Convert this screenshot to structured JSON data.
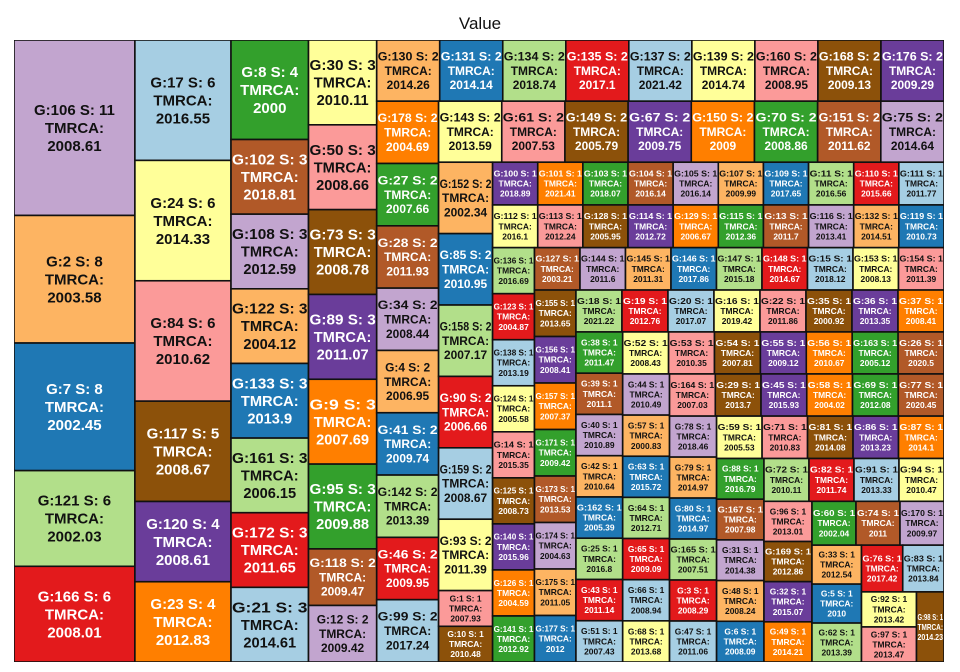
{
  "chart_data": {
    "type": "treemap",
    "title": "Value",
    "label_format": "G:{g} S: {s} TMRCA: {t}",
    "palette": [
      "#c2a5cf",
      "#fdb462",
      "#1f78b4",
      "#b2df8a",
      "#e31a1c",
      "#a6cee3",
      "#ffff99",
      "#fb9a99",
      "#8c510a",
      "#6a3d9a",
      "#ff7f00",
      "#33a02c",
      "#b15928"
    ],
    "groups": [
      {
        "g": 106,
        "s": 11,
        "t": "2008.61"
      },
      {
        "g": 2,
        "s": 8,
        "t": "2003.58"
      },
      {
        "g": 7,
        "s": 8,
        "t": "2002.45"
      },
      {
        "g": 121,
        "s": 6,
        "t": "2002.03"
      },
      {
        "g": 166,
        "s": 6,
        "t": "2008.01"
      },
      {
        "g": 17,
        "s": 6,
        "t": "2016.55"
      },
      {
        "g": 24,
        "s": 6,
        "t": "2014.33"
      },
      {
        "g": 84,
        "s": 6,
        "t": "2010.62"
      },
      {
        "g": 117,
        "s": 5,
        "t": "2008.67"
      },
      {
        "g": 120,
        "s": 4,
        "t": "2008.61"
      },
      {
        "g": 23,
        "s": 4,
        "t": "2012.83"
      },
      {
        "g": 8,
        "s": 4,
        "t": "2000"
      },
      {
        "g": 102,
        "s": 3,
        "t": "2018.81"
      },
      {
        "g": 108,
        "s": 3,
        "t": "2012.59"
      },
      {
        "g": 122,
        "s": 3,
        "t": "2004.12"
      },
      {
        "g": 133,
        "s": 3,
        "t": "2013.9"
      },
      {
        "g": 161,
        "s": 3,
        "t": "2006.15"
      },
      {
        "g": 172,
        "s": 3,
        "t": "2011.65"
      },
      {
        "g": 21,
        "s": 3,
        "t": "2014.61"
      },
      {
        "g": 30,
        "s": 3,
        "t": "2010.11"
      },
      {
        "g": 50,
        "s": 3,
        "t": "2008.66"
      },
      {
        "g": 73,
        "s": 3,
        "t": "2008.78"
      },
      {
        "g": 89,
        "s": 3,
        "t": "2011.07"
      },
      {
        "g": 9,
        "s": 3,
        "t": "2007.69"
      },
      {
        "g": 95,
        "s": 3,
        "t": "2009.88"
      },
      {
        "g": 118,
        "s": 2,
        "t": "2009.47"
      },
      {
        "g": 12,
        "s": 2,
        "t": "2009.42"
      },
      {
        "g": 130,
        "s": 2,
        "t": "2014.26"
      },
      {
        "g": 131,
        "s": 2,
        "t": "2014.14"
      },
      {
        "g": 134,
        "s": 2,
        "t": "2018.74"
      },
      {
        "g": 135,
        "s": 2,
        "t": "2017.1"
      },
      {
        "g": 137,
        "s": 2,
        "t": "2021.42"
      },
      {
        "g": 139,
        "s": 2,
        "t": "2014.74"
      },
      {
        "g": 160,
        "s": 2,
        "t": "2008.95"
      },
      {
        "g": 168,
        "s": 2,
        "t": "2009.13"
      },
      {
        "g": 176,
        "s": 2,
        "t": "2009.29"
      },
      {
        "g": 178,
        "s": 2,
        "t": "2004.69"
      },
      {
        "g": 27,
        "s": 2,
        "t": "2007.66"
      },
      {
        "g": 28,
        "s": 2,
        "t": "2011.93"
      },
      {
        "g": 34,
        "s": 2,
        "t": "2008.44"
      },
      {
        "g": 4,
        "s": 2,
        "t": "2006.95"
      },
      {
        "g": 41,
        "s": 2,
        "t": "2009.74"
      },
      {
        "g": 142,
        "s": 2,
        "t": "2013.39"
      },
      {
        "g": 46,
        "s": 2,
        "t": "2009.95"
      },
      {
        "g": 99,
        "s": 2,
        "t": "2017.24"
      },
      {
        "g": 143,
        "s": 2,
        "t": "2013.59"
      },
      {
        "g": 61,
        "s": 2,
        "t": "2007.53"
      },
      {
        "g": 149,
        "s": 2,
        "t": "2005.79"
      },
      {
        "g": 67,
        "s": 2,
        "t": "2009.75"
      },
      {
        "g": 150,
        "s": 2,
        "t": "2009"
      },
      {
        "g": 70,
        "s": 2,
        "t": "2008.86"
      },
      {
        "g": 151,
        "s": 2,
        "t": "2011.62"
      },
      {
        "g": 75,
        "s": 2,
        "t": "2014.64"
      },
      {
        "g": 152,
        "s": 2,
        "t": "2002.34"
      },
      {
        "g": 85,
        "s": 2,
        "t": "2010.95"
      },
      {
        "g": 158,
        "s": 2,
        "t": "2007.17"
      },
      {
        "g": 90,
        "s": 2,
        "t": "2006.66"
      },
      {
        "g": 159,
        "s": 2,
        "t": "2008.67"
      },
      {
        "g": 93,
        "s": 2,
        "t": "2011.39"
      },
      {
        "g": 1,
        "s": 1,
        "t": "2007.93"
      },
      {
        "g": 10,
        "s": 1,
        "t": "2010.48"
      },
      {
        "g": 100,
        "s": 1,
        "t": "2018.89"
      },
      {
        "g": 101,
        "s": 1,
        "t": "2021.41"
      },
      {
        "g": 103,
        "s": 1,
        "t": "2018.07"
      },
      {
        "g": 104,
        "s": 1,
        "t": "2016.14"
      },
      {
        "g": 105,
        "s": 1,
        "t": "2016.14"
      },
      {
        "g": 107,
        "s": 1,
        "t": "2009.99"
      },
      {
        "g": 109,
        "s": 1,
        "t": "2017.65"
      },
      {
        "g": 11,
        "s": 1,
        "t": "2016.56"
      },
      {
        "g": 110,
        "s": 1,
        "t": "2015.66"
      },
      {
        "g": 111,
        "s": 1,
        "t": "2011.77"
      },
      {
        "g": 112,
        "s": 1,
        "t": "2016.1"
      },
      {
        "g": 113,
        "s": 1,
        "t": "2012.24"
      },
      {
        "g": 128,
        "s": 1,
        "t": "2005.95"
      },
      {
        "g": 114,
        "s": 1,
        "t": "2012.72"
      },
      {
        "g": 129,
        "s": 1,
        "t": "2006.67"
      },
      {
        "g": 115,
        "s": 1,
        "t": "2012.36"
      },
      {
        "g": 13,
        "s": 1,
        "t": "2011.7"
      },
      {
        "g": 116,
        "s": 1,
        "t": "2013.41"
      },
      {
        "g": 132,
        "s": 1,
        "t": "2014.51"
      },
      {
        "g": 119,
        "s": 1,
        "t": "2010.73"
      },
      {
        "g": 136,
        "s": 1,
        "t": "2016.69"
      },
      {
        "g": 123,
        "s": 1,
        "t": "2004.87"
      },
      {
        "g": 138,
        "s": 1,
        "t": "2013.19"
      },
      {
        "g": 124,
        "s": 1,
        "t": "2005.58"
      },
      {
        "g": 14,
        "s": 1,
        "t": "2015.35"
      },
      {
        "g": 125,
        "s": 1,
        "t": "2008.73"
      },
      {
        "g": 140,
        "s": 1,
        "t": "2015.96"
      },
      {
        "g": 126,
        "s": 1,
        "t": "2004.59"
      },
      {
        "g": 141,
        "s": 1,
        "t": "2012.92"
      },
      {
        "g": 127,
        "s": 1,
        "t": "2003.21"
      },
      {
        "g": 144,
        "s": 1,
        "t": "2011.6"
      },
      {
        "g": 145,
        "s": 1,
        "t": "2011.31"
      },
      {
        "g": 146,
        "s": 1,
        "t": "2017.86"
      },
      {
        "g": 147,
        "s": 1,
        "t": "2015.18"
      },
      {
        "g": 148,
        "s": 1,
        "t": "2014.67"
      },
      {
        "g": 15,
        "s": 1,
        "t": "2018.12"
      },
      {
        "g": 153,
        "s": 1,
        "t": "2008.13"
      },
      {
        "g": 154,
        "s": 1,
        "t": "2011.39"
      },
      {
        "g": 155,
        "s": 1,
        "t": "2013.65"
      },
      {
        "g": 156,
        "s": 1,
        "t": "2008.41"
      },
      {
        "g": 157,
        "s": 1,
        "t": "2007.37"
      },
      {
        "g": 171,
        "s": 1,
        "t": "2009.42"
      },
      {
        "g": 173,
        "s": 1,
        "t": "2013.53"
      },
      {
        "g": 174,
        "s": 1,
        "t": "2004.63"
      },
      {
        "g": 175,
        "s": 1,
        "t": "2011.05"
      },
      {
        "g": 177,
        "s": 1,
        "t": "2012"
      },
      {
        "g": 18,
        "s": 1,
        "t": "2021.22"
      },
      {
        "g": 19,
        "s": 1,
        "t": "2012.76"
      },
      {
        "g": 20,
        "s": 1,
        "t": "2017.07"
      },
      {
        "g": 16,
        "s": 1,
        "t": "2019.42"
      },
      {
        "g": 22,
        "s": 1,
        "t": "2011.86"
      },
      {
        "g": 35,
        "s": 1,
        "t": "2000.92"
      },
      {
        "g": 36,
        "s": 1,
        "t": "2013.35"
      },
      {
        "g": 37,
        "s": 1,
        "t": "2008.41"
      },
      {
        "g": 38,
        "s": 1,
        "t": "2011.47"
      },
      {
        "g": 39,
        "s": 1,
        "t": "2011.1"
      },
      {
        "g": 40,
        "s": 1,
        "t": "2010.89"
      },
      {
        "g": 42,
        "s": 1,
        "t": "2010.64"
      },
      {
        "g": 162,
        "s": 1,
        "t": "2005.39"
      },
      {
        "g": 25,
        "s": 1,
        "t": "2016.8"
      },
      {
        "g": 43,
        "s": 1,
        "t": "2011.14"
      },
      {
        "g": 51,
        "s": 1,
        "t": "2007.43"
      },
      {
        "g": 52,
        "s": 1,
        "t": "2008.43"
      },
      {
        "g": 53,
        "s": 1,
        "t": "2010.35"
      },
      {
        "g": 54,
        "s": 1,
        "t": "2007.81"
      },
      {
        "g": 55,
        "s": 1,
        "t": "2009.12"
      },
      {
        "g": 56,
        "s": 1,
        "t": "2010.67"
      },
      {
        "g": 163,
        "s": 1,
        "t": "2005.12"
      },
      {
        "g": 26,
        "s": 1,
        "t": "2020.5"
      },
      {
        "g": 44,
        "s": 1,
        "t": "2010.49"
      },
      {
        "g": 57,
        "s": 1,
        "t": "2000.83"
      },
      {
        "g": 63,
        "s": 1,
        "t": "2015.72"
      },
      {
        "g": 64,
        "s": 1,
        "t": "2012.71"
      },
      {
        "g": 65,
        "s": 1,
        "t": "2009.09"
      },
      {
        "g": 66,
        "s": 1,
        "t": "2008.94"
      },
      {
        "g": 68,
        "s": 1,
        "t": "2013.68"
      },
      {
        "g": 164,
        "s": 1,
        "t": "2007.03"
      },
      {
        "g": 29,
        "s": 1,
        "t": "2013.7"
      },
      {
        "g": 45,
        "s": 1,
        "t": "2015.93"
      },
      {
        "g": 58,
        "s": 1,
        "t": "2004.02"
      },
      {
        "g": 69,
        "s": 1,
        "t": "2012.08"
      },
      {
        "g": 77,
        "s": 1,
        "t": "2020.45"
      },
      {
        "g": 78,
        "s": 1,
        "t": "2018.46"
      },
      {
        "g": 79,
        "s": 1,
        "t": "2014.97"
      },
      {
        "g": 80,
        "s": 1,
        "t": "2014.97"
      },
      {
        "g": 165,
        "s": 1,
        "t": "2007.51"
      },
      {
        "g": 3,
        "s": 1,
        "t": "2008.29"
      },
      {
        "g": 47,
        "s": 1,
        "t": "2011.06"
      },
      {
        "g": 59,
        "s": 1,
        "t": "2005.53"
      },
      {
        "g": 71,
        "s": 1,
        "t": "2010.83"
      },
      {
        "g": 81,
        "s": 1,
        "t": "2014.08"
      },
      {
        "g": 86,
        "s": 1,
        "t": "2013.23"
      },
      {
        "g": 87,
        "s": 1,
        "t": "2014.1"
      },
      {
        "g": 88,
        "s": 1,
        "t": "2016.79"
      },
      {
        "g": 167,
        "s": 1,
        "t": "2007.98"
      },
      {
        "g": 31,
        "s": 1,
        "t": "2014.38"
      },
      {
        "g": 48,
        "s": 1,
        "t": "2008.24"
      },
      {
        "g": 6,
        "s": 1,
        "t": "2008.09"
      },
      {
        "g": 72,
        "s": 1,
        "t": "2010.11"
      },
      {
        "g": 82,
        "s": 1,
        "t": "2011.74"
      },
      {
        "g": 91,
        "s": 1,
        "t": "2013.33"
      },
      {
        "g": 94,
        "s": 1,
        "t": "2010.47"
      },
      {
        "g": 96,
        "s": 1,
        "t": "2013.01"
      },
      {
        "g": 169,
        "s": 1,
        "t": "2012.86"
      },
      {
        "g": 32,
        "s": 1,
        "t": "2015.07"
      },
      {
        "g": 49,
        "s": 1,
        "t": "2014.21"
      },
      {
        "g": 60,
        "s": 1,
        "t": "2002.04"
      },
      {
        "g": 74,
        "s": 1,
        "t": "2011"
      },
      {
        "g": 170,
        "s": 1,
        "t": "2009.97"
      },
      {
        "g": 33,
        "s": 1,
        "t": "2012.54"
      },
      {
        "g": 5,
        "s": 1,
        "t": "2010"
      },
      {
        "g": 62,
        "s": 1,
        "t": "2013.39"
      },
      {
        "g": 76,
        "s": 1,
        "t": "2017.42"
      },
      {
        "g": 83,
        "s": 1,
        "t": "2013.84"
      },
      {
        "g": 92,
        "s": 1,
        "t": "2013.42"
      },
      {
        "g": 97,
        "s": 1,
        "t": "2013.47"
      },
      {
        "g": 98,
        "s": 1,
        "t": "2014.23"
      }
    ]
  }
}
